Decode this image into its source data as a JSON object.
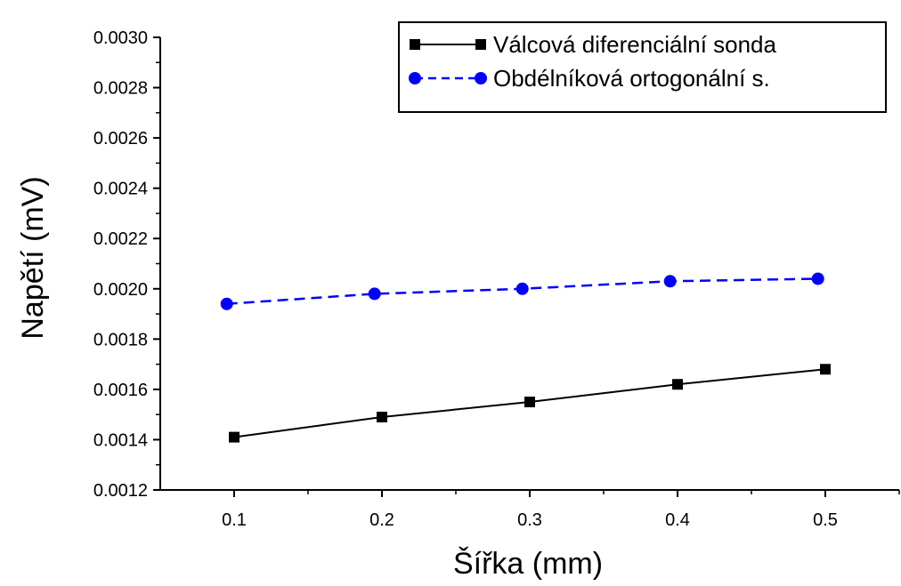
{
  "chart_data": {
    "type": "line",
    "title": "",
    "xlabel": "Šířka (mm)",
    "ylabel": "Napětí (mV)",
    "xlim": [
      0.05,
      0.55
    ],
    "ylim": [
      0.0012,
      0.003
    ],
    "xticks": [
      0.1,
      0.2,
      0.3,
      0.4,
      0.5
    ],
    "xtick_labels": [
      "0.1",
      "0.2",
      "0.3",
      "0.4",
      "0.5"
    ],
    "yticks": [
      0.0012,
      0.0014,
      0.0016,
      0.0018,
      0.002,
      0.0022,
      0.0024,
      0.0026,
      0.0028,
      0.003
    ],
    "ytick_labels": [
      "0.0012",
      "0.0014",
      "0.0016",
      "0.0018",
      "0.0020",
      "0.0022",
      "0.0024",
      "0.0026",
      "0.0028",
      "0.0030"
    ],
    "grid": false,
    "legend_position": "top-right",
    "series": [
      {
        "name": "Válcová diferenciální sonda",
        "color": "#000000",
        "line_style": "solid",
        "marker": "square",
        "x": [
          0.1,
          0.2,
          0.3,
          0.4,
          0.5
        ],
        "y": [
          0.00141,
          0.00149,
          0.00155,
          0.00162,
          0.00168
        ]
      },
      {
        "name": "Obdélníková ortogonální s.",
        "color": "#0000ff",
        "line_style": "dashed",
        "marker": "circle",
        "x": [
          0.095,
          0.195,
          0.295,
          0.395,
          0.495
        ],
        "y": [
          0.00194,
          0.00198,
          0.002,
          0.00203,
          0.00204
        ]
      }
    ]
  }
}
